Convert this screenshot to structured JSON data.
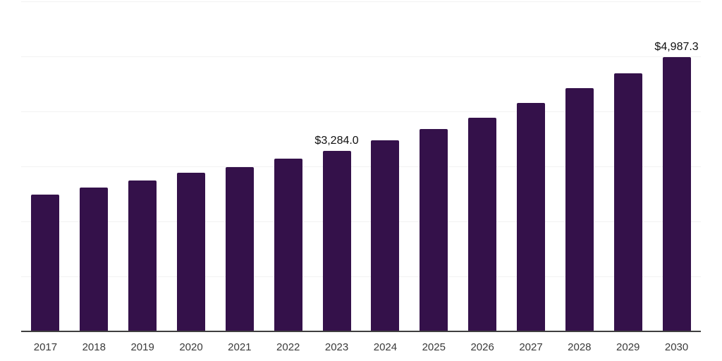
{
  "chart_data": {
    "type": "bar",
    "title": "",
    "xlabel": "",
    "ylabel": "",
    "categories": [
      "2017",
      "2018",
      "2019",
      "2020",
      "2021",
      "2022",
      "2023",
      "2024",
      "2025",
      "2026",
      "2027",
      "2028",
      "2029",
      "2030"
    ],
    "values": [
      2490,
      2610,
      2750,
      2880,
      2990,
      3140,
      3284.0,
      3475,
      3680,
      3885,
      4155,
      4425,
      4690,
      4987.3
    ],
    "data_labels": {
      "2023": "$3,284.0",
      "2030": "$4,987.3"
    },
    "ylim": [
      0,
      6000
    ],
    "gridline_interval": 1000,
    "grid": true,
    "legend_position": "none",
    "y_tick_labels_visible": false,
    "colors": {
      "bar": "#34114a",
      "gridline": "#f2f2f2",
      "axis": "#3f3f3f",
      "tick_label": "#3a3a3a",
      "data_label": "#0f0f0f",
      "background": "#ffffff"
    }
  }
}
